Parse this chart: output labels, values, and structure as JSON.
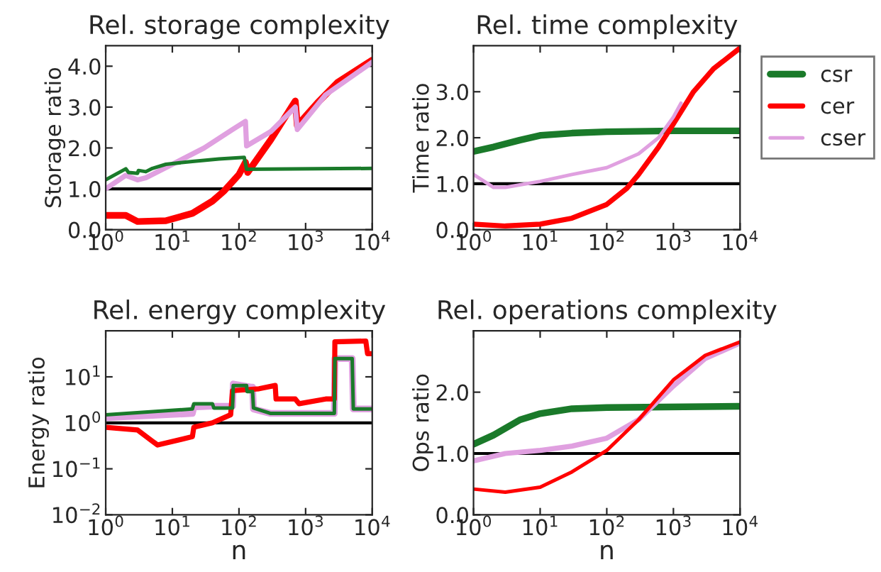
{
  "chart_data": [
    {
      "type": "line",
      "title": "Rel. storage complexity",
      "ylabel": "Storage ratio",
      "log": "x",
      "grid": false,
      "legend": false,
      "xlim": [
        1,
        10000
      ],
      "xticks": [
        {
          "value": 1,
          "label": "10$^{0}$"
        },
        {
          "value": 10,
          "label": "10$^{1}$"
        },
        {
          "value": 100,
          "label": "10$^{2}$"
        },
        {
          "value": 1000,
          "label": "10$^{3}$"
        },
        {
          "value": 10000,
          "label": "10$^{4}$"
        }
      ],
      "ylim": [
        0,
        4.5
      ],
      "yticks": [
        {
          "value": 0,
          "label": "0.0"
        },
        {
          "value": 1,
          "label": "1.0"
        },
        {
          "value": 2,
          "label": "2.0"
        },
        {
          "value": 3,
          "label": "3.0"
        },
        {
          "value": 4,
          "label": "4.0"
        }
      ],
      "ref_lines": [
        {
          "axis": "y",
          "value": 1,
          "color": "#000000"
        }
      ],
      "series": [
        {
          "color": "#ff0000",
          "x": [
            1,
            2,
            3,
            8,
            20,
            40,
            60,
            100,
            125,
            135,
            300,
            700,
            750,
            1500,
            3000,
            10000
          ],
          "values": [
            0.35,
            0.35,
            0.2,
            0.22,
            0.4,
            0.7,
            0.95,
            1.35,
            1.65,
            1.4,
            2.2,
            3.15,
            2.55,
            3.1,
            3.6,
            4.15
          ]
        },
        {
          "color": "#e0a0e0",
          "x": [
            1,
            2,
            3,
            4,
            10,
            30,
            80,
            125,
            130,
            300,
            700,
            750,
            2000,
            10000
          ],
          "values": [
            1.0,
            1.33,
            1.22,
            1.27,
            1.6,
            2.0,
            2.45,
            2.65,
            2.05,
            2.4,
            3.0,
            2.45,
            3.3,
            4.1
          ]
        },
        {
          "color": "#1a7a2a",
          "x": [
            1,
            2,
            2.2,
            3,
            3.1,
            4,
            5,
            8,
            20,
            50,
            120,
            130,
            10000
          ],
          "values": [
            1.22,
            1.49,
            1.4,
            1.38,
            1.45,
            1.42,
            1.5,
            1.6,
            1.67,
            1.73,
            1.77,
            1.48,
            1.5
          ]
        }
      ]
    },
    {
      "type": "line",
      "title": "Rel. time complexity",
      "ylabel": "Time ratio",
      "log": "x",
      "grid": false,
      "legend": "right",
      "xlim": [
        1,
        10000
      ],
      "xticks": [
        {
          "value": 1,
          "label": "10$^{0}$"
        },
        {
          "value": 10,
          "label": "10$^{1}$"
        },
        {
          "value": 100,
          "label": "10$^{2}$"
        },
        {
          "value": 1000,
          "label": "10$^{3}$"
        },
        {
          "value": 10000,
          "label": "10$^{4}$"
        }
      ],
      "ylim": [
        0,
        4
      ],
      "yticks": [
        {
          "value": 0,
          "label": "0.0"
        },
        {
          "value": 1,
          "label": "1.0"
        },
        {
          "value": 2,
          "label": "2.0"
        },
        {
          "value": 3,
          "label": "3.0"
        }
      ],
      "ref_lines": [
        {
          "axis": "y",
          "value": 1,
          "color": "#000000"
        }
      ],
      "series": [
        {
          "name": "csr",
          "color": "#1a7a2a",
          "x": [
            1,
            2,
            5,
            10,
            30,
            100,
            1000,
            10000
          ],
          "values": [
            1.7,
            1.8,
            1.95,
            2.05,
            2.1,
            2.13,
            2.15,
            2.15
          ]
        },
        {
          "name": "cer",
          "color": "#ff0000",
          "x": [
            1,
            3,
            10,
            30,
            100,
            200,
            300,
            600,
            1000,
            2000,
            4000,
            10000
          ],
          "values": [
            0.12,
            0.08,
            0.12,
            0.25,
            0.55,
            0.9,
            1.2,
            1.8,
            2.3,
            3.0,
            3.5,
            3.95
          ]
        },
        {
          "name": "cser",
          "color": "#e0a0e0",
          "x": [
            1,
            2,
            3,
            10,
            30,
            100,
            300,
            600,
            1000,
            1300
          ],
          "values": [
            1.2,
            0.92,
            0.92,
            1.05,
            1.2,
            1.35,
            1.65,
            2.0,
            2.45,
            2.75
          ]
        }
      ]
    },
    {
      "type": "line",
      "title": "Rel. energy complexity",
      "ylabel": "Energy ratio",
      "xlabel": "n",
      "log": "xy",
      "grid": false,
      "legend": false,
      "xlim": [
        1,
        10000
      ],
      "xticks": [
        {
          "value": 1,
          "label": "10$^{0}$"
        },
        {
          "value": 10,
          "label": "10$^{1}$"
        },
        {
          "value": 100,
          "label": "10$^{2}$"
        },
        {
          "value": 1000,
          "label": "10$^{3}$"
        },
        {
          "value": 10000,
          "label": "10$^{4}$"
        }
      ],
      "ylim": [
        0.01,
        100
      ],
      "yticks": [
        {
          "value": 0.01,
          "label": "10$^{−2}$"
        },
        {
          "value": 0.1,
          "label": "10$^{−1}$"
        },
        {
          "value": 1,
          "label": "10$^{0}$"
        },
        {
          "value": 10,
          "label": "10$^{1}$"
        }
      ],
      "ref_lines": [
        {
          "axis": "y",
          "value": 1,
          "color": "#000000"
        }
      ],
      "series": [
        {
          "color": "#e0a0e0",
          "x": [
            1,
            20,
            21,
            40,
            80,
            82,
            150,
            160,
            165,
            300,
            2700,
            2750,
            5000,
            5200,
            10000
          ],
          "values": [
            1.3,
            1.6,
            2.2,
            2.3,
            2.3,
            7.0,
            6.0,
            6.0,
            2.0,
            1.6,
            1.6,
            25,
            25,
            2.0,
            2.0
          ]
        },
        {
          "color": "#ff0000",
          "x": [
            1,
            3,
            5,
            6,
            20,
            21,
            40,
            75,
            80,
            200,
            350,
            360,
            700,
            800,
            2000,
            2700,
            2750,
            8000,
            8500,
            10000
          ],
          "values": [
            0.8,
            0.7,
            0.4,
            0.33,
            0.5,
            0.8,
            1.0,
            1.5,
            5,
            5.5,
            6.5,
            3.3,
            3.3,
            2.6,
            3.3,
            3.3,
            58,
            60,
            32,
            32
          ]
        },
        {
          "color": "#1a7a2a",
          "x": [
            1,
            20,
            21,
            40,
            42,
            80,
            82,
            130,
            132,
            160,
            165,
            300,
            2700,
            2750,
            5000,
            5200,
            10000
          ],
          "values": [
            1.5,
            2.0,
            2.6,
            2.6,
            2.1,
            2.1,
            6.5,
            6.5,
            4.8,
            4.8,
            2.1,
            1.6,
            1.6,
            25,
            25,
            2.0,
            2.0
          ]
        }
      ]
    },
    {
      "type": "line",
      "title": "Rel. operations complexity",
      "ylabel": "Ops ratio",
      "xlabel": "n",
      "log": "x",
      "grid": false,
      "legend": false,
      "xlim": [
        1,
        10000
      ],
      "xticks": [
        {
          "value": 1,
          "label": "10$^{0}$"
        },
        {
          "value": 10,
          "label": "10$^{1}$"
        },
        {
          "value": 100,
          "label": "10$^{2}$"
        },
        {
          "value": 1000,
          "label": "10$^{3}$"
        },
        {
          "value": 10000,
          "label": "10$^{4}$"
        }
      ],
      "ylim": [
        0,
        3
      ],
      "yticks": [
        {
          "value": 0,
          "label": "0.0"
        },
        {
          "value": 1,
          "label": "1.0"
        },
        {
          "value": 2,
          "label": "2.0"
        }
      ],
      "ref_lines": [
        {
          "axis": "y",
          "value": 1,
          "color": "#000000"
        }
      ],
      "series": [
        {
          "color": "#1a7a2a",
          "x": [
            1,
            2,
            5,
            10,
            30,
            100,
            10000
          ],
          "values": [
            1.15,
            1.3,
            1.55,
            1.65,
            1.73,
            1.75,
            1.77
          ]
        },
        {
          "color": "#e0a0e0",
          "x": [
            1,
            3,
            10,
            30,
            100,
            300,
            1000,
            3000,
            10000
          ],
          "values": [
            0.88,
            1.0,
            1.05,
            1.12,
            1.25,
            1.55,
            2.1,
            2.55,
            2.8
          ]
        },
        {
          "color": "#ff0000",
          "x": [
            1,
            3,
            10,
            30,
            100,
            300,
            1000,
            3000,
            10000
          ],
          "values": [
            0.42,
            0.37,
            0.45,
            0.7,
            1.05,
            1.55,
            2.2,
            2.6,
            2.82
          ]
        }
      ]
    }
  ]
}
